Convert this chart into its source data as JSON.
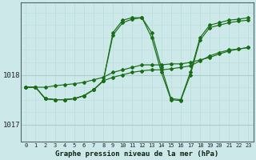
{
  "title": "Graphe pression niveau de la mer (hPa)",
  "bg_color": "#cce8e8",
  "grid_color_v": "#aacccc",
  "grid_color_h": "#aacccc",
  "line_color": "#1a6e1a",
  "xlim": [
    -0.5,
    23.5
  ],
  "ylim": [
    1016.65,
    1019.45
  ],
  "yticks": [
    1017,
    1018
  ],
  "xticks": [
    0,
    1,
    2,
    3,
    4,
    5,
    6,
    7,
    8,
    9,
    10,
    11,
    12,
    13,
    14,
    15,
    16,
    17,
    18,
    19,
    20,
    21,
    22,
    23
  ],
  "series": [
    [
      1017.75,
      1017.75,
      1017.75,
      1017.78,
      1017.8,
      1017.82,
      1017.85,
      1017.9,
      1017.95,
      1018.05,
      1018.1,
      1018.15,
      1018.2,
      1018.2,
      1018.2,
      1018.22,
      1018.22,
      1018.25,
      1018.3,
      1018.35,
      1018.42,
      1018.48,
      1018.52,
      1018.55
    ],
    [
      1017.75,
      1017.75,
      1017.52,
      1017.5,
      1017.5,
      1017.52,
      1017.58,
      1017.7,
      1017.88,
      1018.85,
      1019.1,
      1019.15,
      1019.15,
      1018.85,
      1018.15,
      1017.52,
      1017.5,
      1018.05,
      1018.75,
      1019.0,
      1019.05,
      1019.1,
      1019.12,
      1019.15
    ],
    [
      1017.75,
      1017.75,
      1017.52,
      1017.5,
      1017.5,
      1017.52,
      1017.58,
      1017.7,
      1017.88,
      1018.8,
      1019.05,
      1019.12,
      1019.15,
      1018.75,
      1018.05,
      1017.5,
      1017.48,
      1018.0,
      1018.7,
      1018.95,
      1019.0,
      1019.05,
      1019.08,
      1019.1
    ],
    [
      1017.75,
      1017.75,
      1017.52,
      1017.5,
      1017.5,
      1017.52,
      1017.58,
      1017.7,
      1017.88,
      1017.95,
      1018.0,
      1018.05,
      1018.08,
      1018.1,
      1018.1,
      1018.12,
      1018.15,
      1018.18,
      1018.28,
      1018.38,
      1018.45,
      1018.5,
      1018.52,
      1018.55
    ]
  ]
}
